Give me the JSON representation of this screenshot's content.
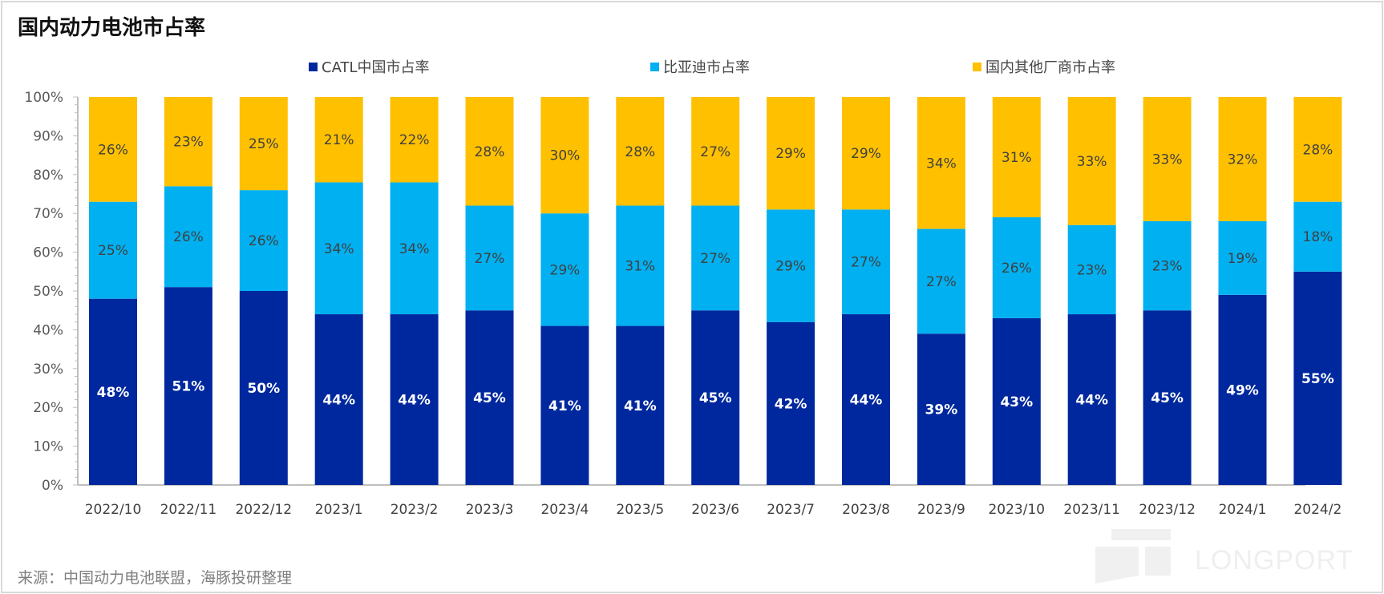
{
  "title": "国内动力电池市占率",
  "source": "来源：中国动力电池联盟，海豚投研整理",
  "watermark": "LONGPORT",
  "colors": {
    "catl": "#00289E",
    "byd": "#00B0F0",
    "other": "#FFC000"
  },
  "chart_data": {
    "type": "bar",
    "stacked": true,
    "title": "国内动力电池市占率",
    "categories": [
      "2022/10",
      "2022/11",
      "2022/12",
      "2023/1",
      "2023/2",
      "2023/3",
      "2023/4",
      "2023/5",
      "2023/6",
      "2023/7",
      "2023/8",
      "2023/9",
      "2023/10",
      "2023/11",
      "2023/12",
      "2024/1",
      "2024/2"
    ],
    "series": [
      {
        "name": "CATL中国市占率",
        "values": [
          48,
          51,
          50,
          44,
          44,
          45,
          41,
          41,
          45,
          42,
          44,
          39,
          43,
          44,
          45,
          49,
          55
        ]
      },
      {
        "name": "比亚迪市占率",
        "values": [
          25,
          26,
          26,
          34,
          34,
          27,
          29,
          31,
          27,
          29,
          27,
          27,
          26,
          23,
          23,
          19,
          18
        ]
      },
      {
        "name": "国内其他厂商市占率",
        "values": [
          26,
          23,
          25,
          21,
          22,
          28,
          30,
          28,
          27,
          29,
          29,
          34,
          31,
          33,
          33,
          32,
          28
        ]
      }
    ],
    "yticks": [
      "0%",
      "10%",
      "20%",
      "30%",
      "40%",
      "50%",
      "60%",
      "70%",
      "80%",
      "90%",
      "100%"
    ],
    "ylim": [
      0,
      100
    ],
    "grid": false,
    "legend": "top"
  }
}
